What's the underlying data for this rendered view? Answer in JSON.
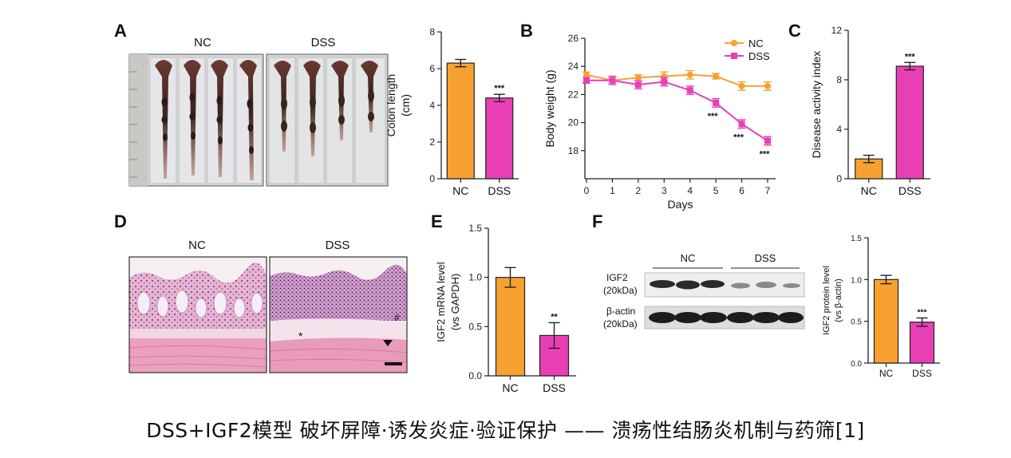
{
  "panels": {
    "A": {
      "letter": "A",
      "photo_labels": [
        "NC",
        "DSS"
      ],
      "chart_data": {
        "type": "bar",
        "categories": [
          "NC",
          "DSS"
        ],
        "values": [
          6.3,
          4.4
        ],
        "errors": [
          0.2,
          0.2
        ],
        "ylabel_lines": [
          "Colon length",
          "(cm)"
        ],
        "ylim": [
          0,
          8
        ],
        "yticks": [
          0,
          2,
          4,
          6,
          8
        ],
        "significance": [
          "",
          "***"
        ],
        "colors": [
          "#f7a230",
          "#e83fb5"
        ]
      }
    },
    "B": {
      "letter": "B",
      "chart_data": {
        "type": "line",
        "x": [
          0,
          1,
          2,
          3,
          4,
          5,
          6,
          7
        ],
        "xlabel": "Days",
        "ylabel": "Body weight (g)",
        "ylim": [
          16,
          26
        ],
        "yticks": [
          18,
          20,
          22,
          24,
          26
        ],
        "legend_position": "top-right",
        "series": [
          {
            "name": "NC",
            "color": "#f7a230",
            "values": [
              23.4,
              23.0,
              23.2,
              23.3,
              23.4,
              23.3,
              22.6,
              22.6
            ],
            "errors": [
              0.2,
              0.2,
              0.2,
              0.3,
              0.3,
              0.2,
              0.3,
              0.3
            ],
            "significance": [
              "",
              "",
              "",
              "",
              "",
              "",
              "",
              ""
            ]
          },
          {
            "name": "DSS",
            "color": "#e83fb5",
            "values": [
              23.0,
              23.0,
              22.7,
              22.9,
              22.3,
              21.4,
              19.9,
              18.7
            ],
            "errors": [
              0.2,
              0.3,
              0.3,
              0.3,
              0.3,
              0.3,
              0.3,
              0.3
            ],
            "significance": [
              "",
              "",
              "",
              "",
              "",
              "***",
              "***",
              "***"
            ]
          }
        ]
      }
    },
    "C": {
      "letter": "C",
      "chart_data": {
        "type": "bar",
        "categories": [
          "NC",
          "DSS"
        ],
        "values": [
          1.6,
          9.1
        ],
        "errors": [
          0.3,
          0.3
        ],
        "ylabel": "Disease activity index",
        "ylim": [
          0,
          12
        ],
        "yticks": [
          0,
          4,
          8,
          12
        ],
        "significance": [
          "",
          "***"
        ],
        "colors": [
          "#f7a230",
          "#e83fb5"
        ]
      }
    },
    "D": {
      "letter": "D",
      "photo_labels": [
        "NC",
        "DSS"
      ],
      "marks": [
        "#",
        "*"
      ]
    },
    "E": {
      "letter": "E",
      "chart_data": {
        "type": "bar",
        "categories": [
          "NC",
          "DSS"
        ],
        "values": [
          1.0,
          0.41
        ],
        "errors": [
          0.1,
          0.13
        ],
        "ylabel_lines": [
          "IGF2 mRNA level",
          "(vs GAPDH)"
        ],
        "ylim": [
          0,
          1.5
        ],
        "yticks": [
          0.0,
          0.5,
          1.0,
          1.5
        ],
        "ytick_labels": [
          "0.0",
          "0.5",
          "1.0",
          "1.5"
        ],
        "significance": [
          "",
          "**"
        ],
        "colors": [
          "#f7a230",
          "#e83fb5"
        ]
      }
    },
    "F": {
      "letter": "F",
      "blot_group_labels": [
        "NC",
        "DSS"
      ],
      "blot_band_labels": [
        {
          "name": "IGF2",
          "size": "(20kDa)"
        },
        {
          "name": "β-actin",
          "size": "(20kDa)"
        }
      ],
      "chart_data": {
        "type": "bar",
        "categories": [
          "NC",
          "DSS"
        ],
        "values": [
          1.0,
          0.49
        ],
        "errors": [
          0.05,
          0.05
        ],
        "ylabel_lines": [
          "IGF2 protein level",
          "(vs β-actin)"
        ],
        "ylim": [
          0,
          1.5
        ],
        "yticks": [
          0.0,
          0.5,
          1.0,
          1.5
        ],
        "ytick_labels": [
          "0.0",
          "0.5",
          "1.0",
          "1.5"
        ],
        "significance": [
          "",
          "***"
        ],
        "colors": [
          "#f7a230",
          "#e83fb5"
        ]
      }
    }
  },
  "caption": "DSS+IGF2模型 破坏屏障·诱发炎症·验证保护 —— 溃疡性结肠炎机制与药筛[1]"
}
